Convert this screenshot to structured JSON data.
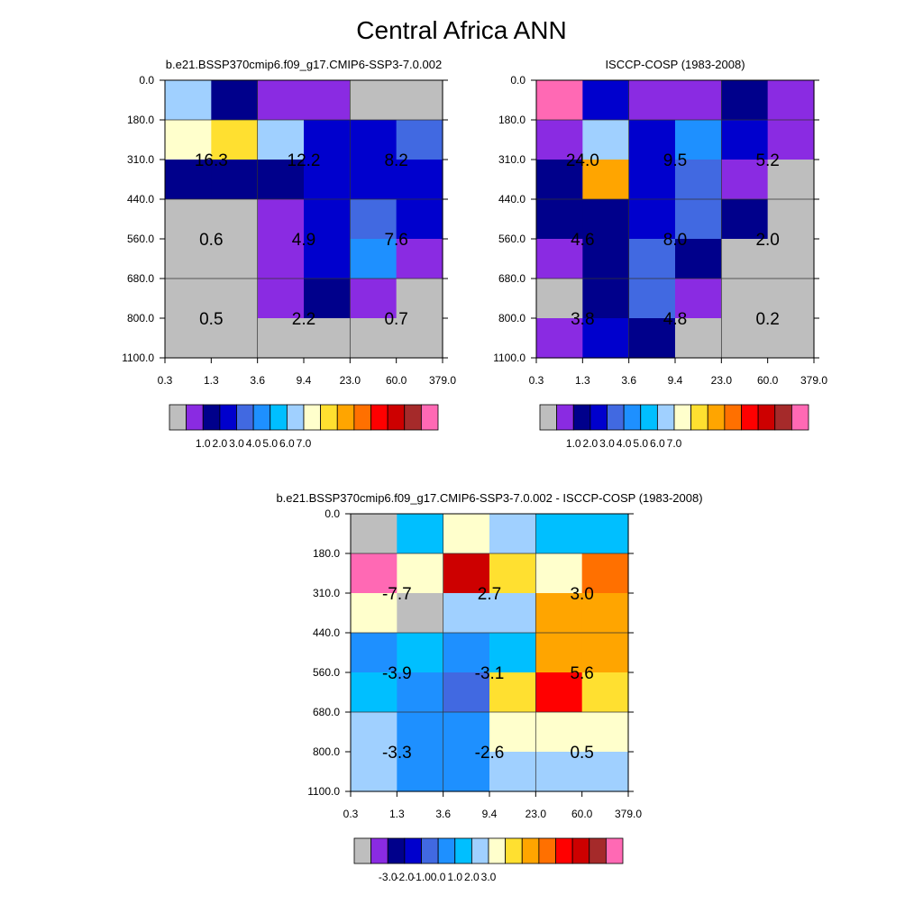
{
  "title": "Central Africa ANN",
  "colors": {
    "abs": [
      "#BEBEBE",
      "#8A2BE2",
      "#00008B",
      "#0000CD",
      "#4169E1",
      "#1E90FF",
      "#00BFFF",
      "#A0D0FF",
      "#FFFFCC",
      "#FFE030",
      "#FFA500",
      "#FF7000",
      "#FF0000",
      "#CD0000",
      "#A52A2A",
      "#FF69B4"
    ],
    "diff": [
      "#BEBEBE",
      "#8A2BE2",
      "#00008B",
      "#0000CD",
      "#4169E1",
      "#1E90FF",
      "#00BFFF",
      "#A0D0FF",
      "#FFFFCC",
      "#FFE030",
      "#FFA500",
      "#FF7000",
      "#FF0000",
      "#CD0000",
      "#A52A2A",
      "#FF69B4"
    ]
  },
  "chart_data": [
    {
      "type": "heatmap",
      "id": "model",
      "title": "b.e21.BSSP370cmip6.f09_g17.CMIP6-SSP3-7.0.002",
      "x_ticks": [
        "0.3",
        "1.3",
        "3.6",
        "9.4",
        "23.0",
        "60.0",
        "379.0"
      ],
      "y_ticks": [
        "0.0",
        "180.0",
        "310.0",
        "440.0",
        "560.0",
        "680.0",
        "800.0",
        "1100.0"
      ],
      "cell_colors": [
        [
          7,
          2,
          1,
          1,
          0,
          0
        ],
        [
          8,
          9,
          7,
          3,
          3,
          4
        ],
        [
          2,
          2,
          2,
          3,
          3,
          3
        ],
        [
          0,
          0,
          1,
          3,
          4,
          3
        ],
        [
          0,
          0,
          1,
          3,
          5,
          1
        ],
        [
          0,
          0,
          1,
          2,
          1,
          0
        ],
        [
          0,
          0,
          0,
          0,
          0,
          0
        ]
      ],
      "block_labels": [
        [
          "16.3",
          "12.2",
          "8.2"
        ],
        [
          "0.6",
          "4.9",
          "7.6"
        ],
        [
          "0.5",
          "2.2",
          "0.7"
        ]
      ],
      "colorbar": {
        "labels": [
          "1.0",
          "2.0",
          "3.0",
          "4.0",
          "5.0",
          "6.0",
          "7.0"
        ],
        "palette": "abs"
      }
    },
    {
      "type": "heatmap",
      "id": "obs",
      "title": "ISCCP-COSP (1983-2008)",
      "x_ticks": [
        "0.3",
        "1.3",
        "3.6",
        "9.4",
        "23.0",
        "60.0",
        "379.0"
      ],
      "y_ticks": [
        "0.0",
        "180.0",
        "310.0",
        "440.0",
        "560.0",
        "680.0",
        "800.0",
        "1100.0"
      ],
      "cell_colors": [
        [
          15,
          3,
          1,
          1,
          2,
          1
        ],
        [
          1,
          7,
          3,
          5,
          3,
          1
        ],
        [
          2,
          10,
          3,
          4,
          1,
          0
        ],
        [
          2,
          2,
          3,
          4,
          2,
          0
        ],
        [
          1,
          2,
          4,
          2,
          0,
          0
        ],
        [
          0,
          2,
          4,
          1,
          0,
          0
        ],
        [
          1,
          3,
          2,
          0,
          0,
          0
        ]
      ],
      "block_labels": [
        [
          "24.0",
          "9.5",
          "5.2"
        ],
        [
          "4.6",
          "8.0",
          "2.0"
        ],
        [
          "3.8",
          "4.8",
          "0.2"
        ]
      ],
      "colorbar": {
        "labels": [
          "1.0",
          "2.0",
          "3.0",
          "4.0",
          "5.0",
          "6.0",
          "7.0"
        ],
        "palette": "abs"
      }
    },
    {
      "type": "heatmap",
      "id": "diff",
      "title": "b.e21.BSSP370cmip6.f09_g17.CMIP6-SSP3-7.0.002 - ISCCP-COSP (1983-2008)",
      "x_ticks": [
        "0.3",
        "1.3",
        "3.6",
        "9.4",
        "23.0",
        "60.0",
        "379.0"
      ],
      "y_ticks": [
        "0.0",
        "180.0",
        "310.0",
        "440.0",
        "560.0",
        "680.0",
        "800.0",
        "1100.0"
      ],
      "cell_colors": [
        [
          0,
          6,
          8,
          7,
          6,
          6
        ],
        [
          15,
          8,
          13,
          9,
          8,
          11
        ],
        [
          8,
          0,
          7,
          7,
          10,
          10
        ],
        [
          5,
          6,
          5,
          6,
          10,
          10
        ],
        [
          6,
          5,
          4,
          9,
          12,
          9
        ],
        [
          7,
          5,
          5,
          8,
          8,
          8
        ],
        [
          7,
          5,
          5,
          7,
          7,
          7
        ]
      ],
      "block_labels": [
        [
          "-7.7",
          "2.7",
          "3.0"
        ],
        [
          "-3.9",
          "-3.1",
          "5.6"
        ],
        [
          "-3.3",
          "-2.6",
          "0.5"
        ]
      ],
      "colorbar": {
        "labels": [
          "-3.0",
          "-2.0",
          "-1.0",
          "0.0",
          "1.0",
          "2.0",
          "3.0"
        ],
        "palette": "diff"
      }
    }
  ]
}
